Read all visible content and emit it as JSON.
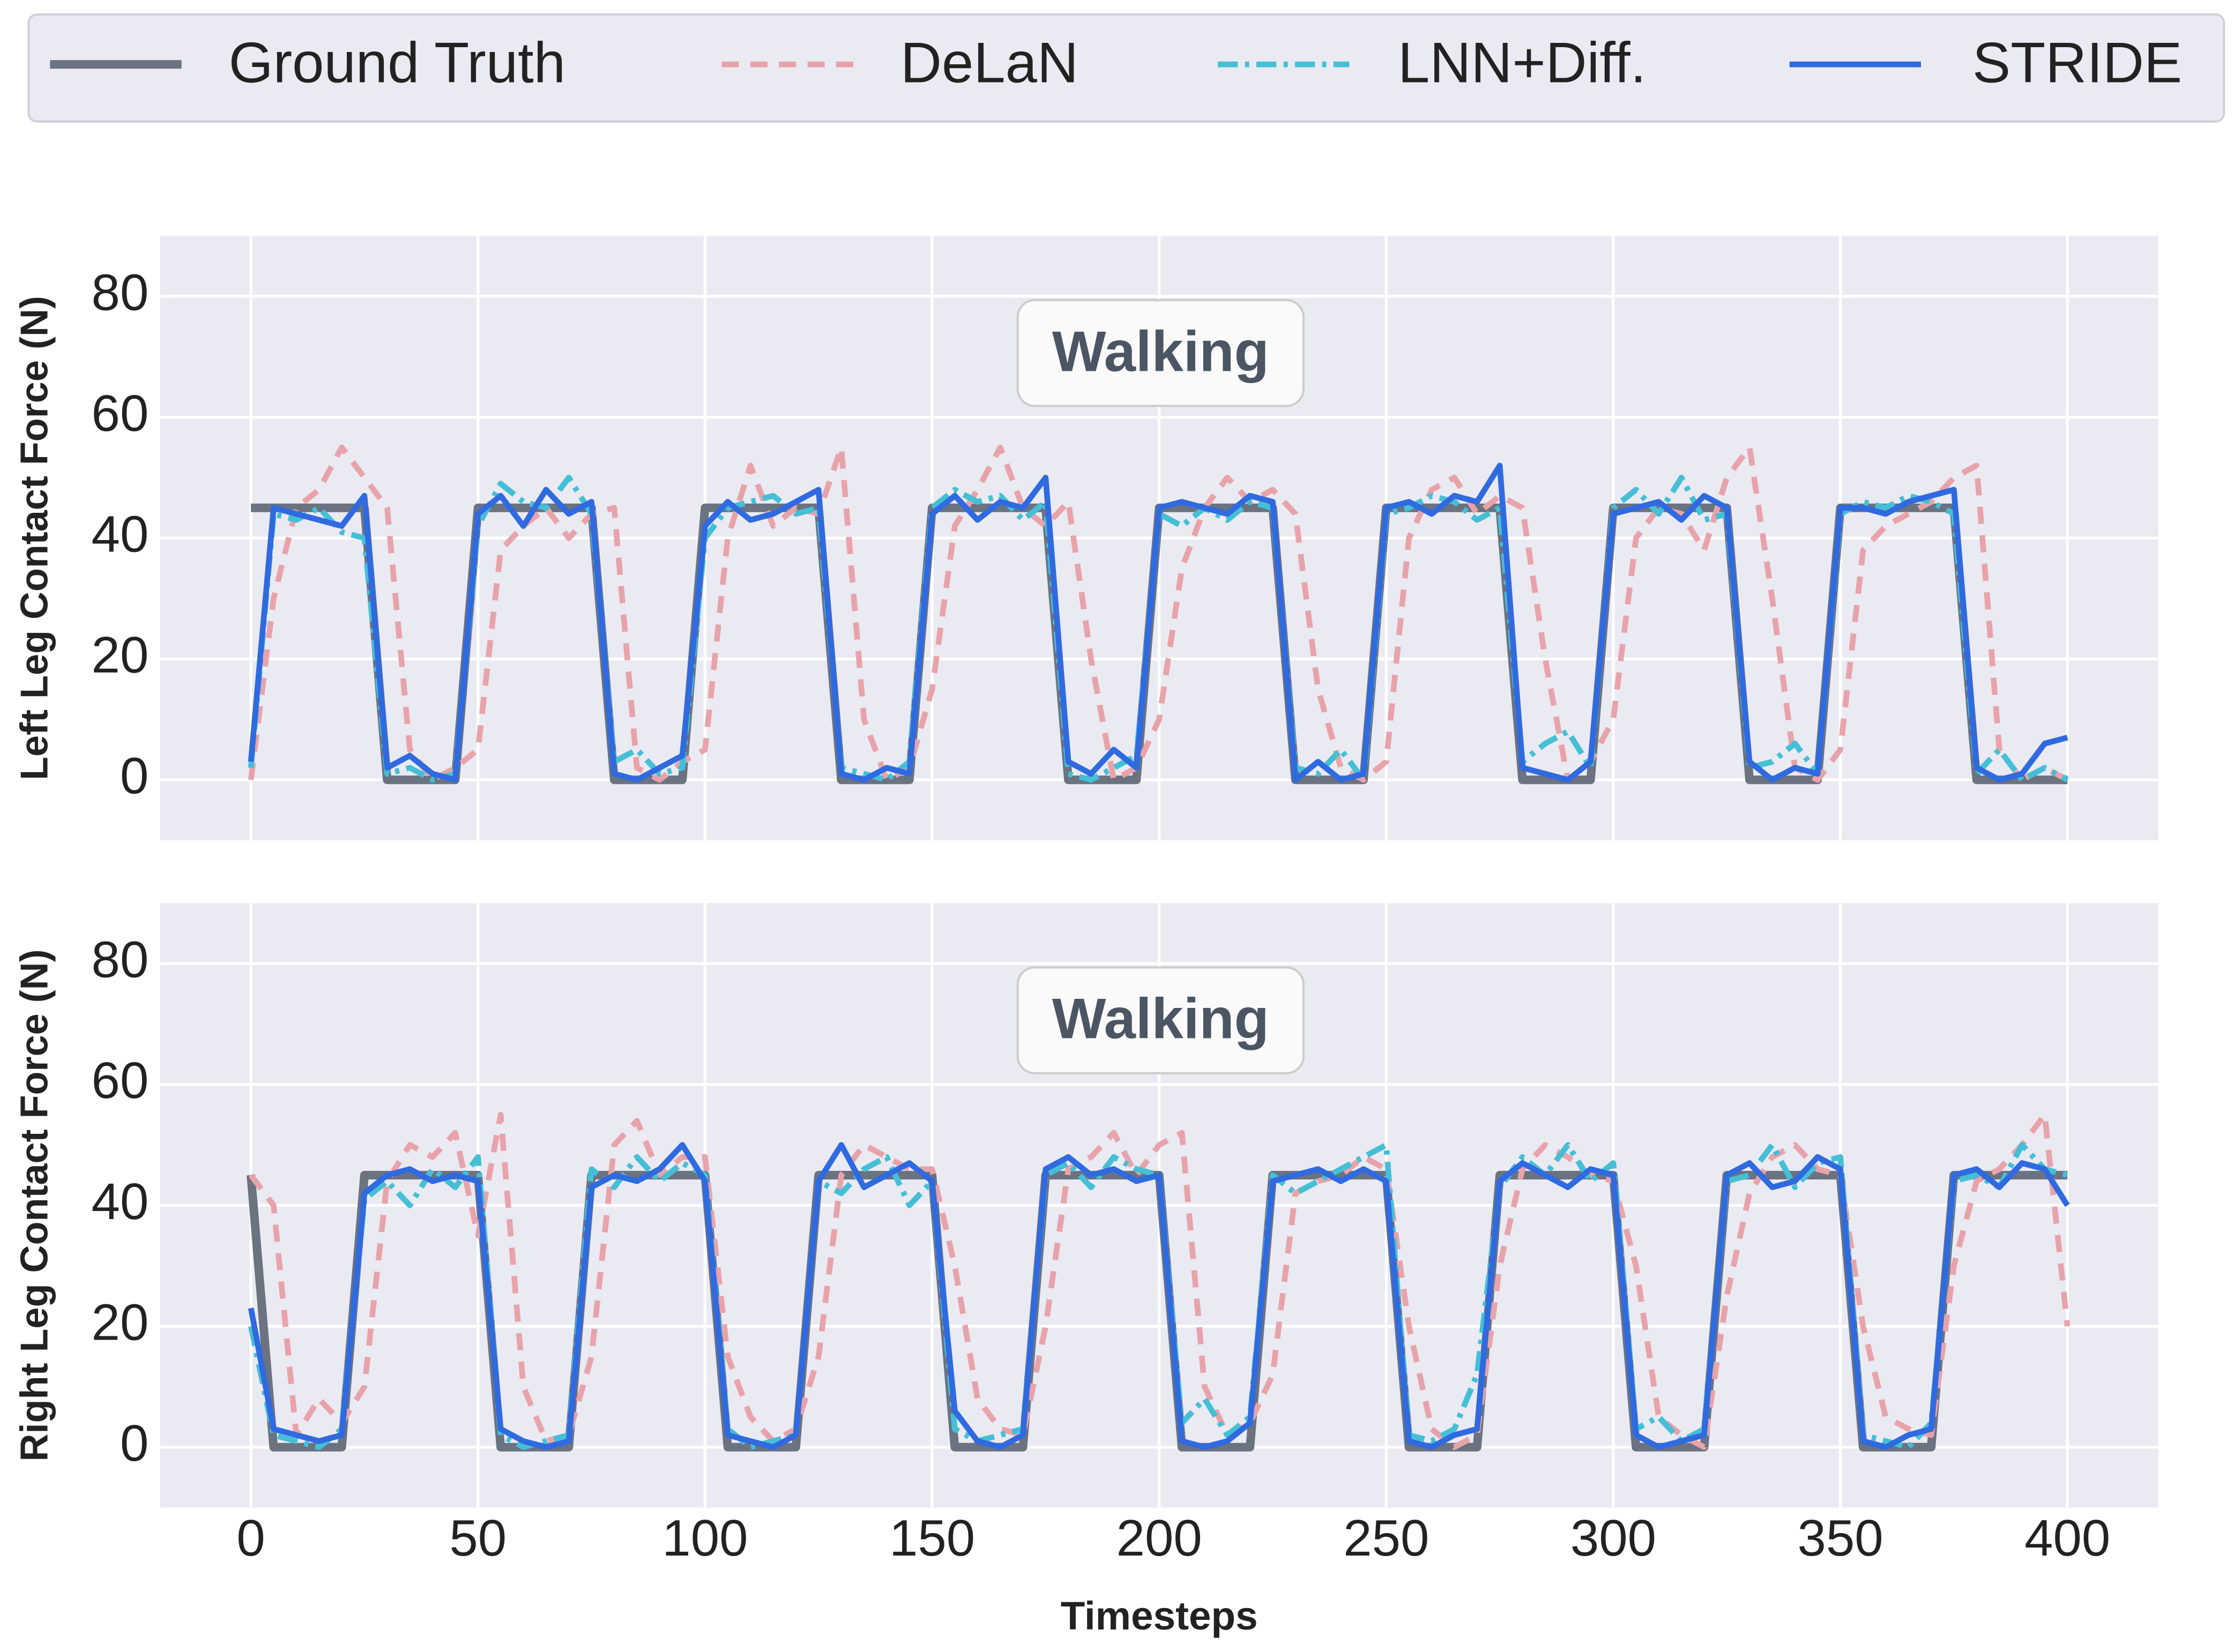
{
  "chart_data": [
    {
      "type": "line",
      "annotation": "Walking",
      "ylabel": "Left Leg Contact Force (N)",
      "xlim": [
        -20,
        420
      ],
      "xticks": [
        0,
        50,
        100,
        150,
        200,
        250,
        300,
        350,
        400
      ],
      "ylim": [
        -10,
        90
      ],
      "yticks": [
        0,
        20,
        40,
        60,
        80
      ],
      "grid": true,
      "legend": "top",
      "x": [
        0,
        5,
        10,
        15,
        20,
        25,
        30,
        35,
        40,
        45,
        50,
        55,
        60,
        65,
        70,
        75,
        80,
        85,
        90,
        95,
        100,
        105,
        110,
        115,
        120,
        125,
        130,
        135,
        140,
        145,
        150,
        155,
        160,
        165,
        170,
        175,
        180,
        185,
        190,
        195,
        200,
        205,
        210,
        215,
        220,
        225,
        230,
        235,
        240,
        245,
        250,
        255,
        260,
        265,
        270,
        275,
        280,
        285,
        290,
        295,
        300,
        305,
        310,
        315,
        320,
        325,
        330,
        335,
        340,
        345,
        350,
        355,
        360,
        365,
        370,
        375,
        380,
        385,
        390,
        395,
        400
      ],
      "series": [
        {
          "name": "Ground Truth",
          "color": "#6b7280",
          "linestyle": "solid-thick",
          "values": [
            45,
            45,
            45,
            45,
            45,
            45,
            0,
            0,
            0,
            0,
            45,
            45,
            45,
            45,
            45,
            45,
            0,
            0,
            0,
            0,
            45,
            45,
            45,
            45,
            45,
            45,
            0,
            0,
            0,
            0,
            45,
            45,
            45,
            45,
            45,
            45,
            0,
            0,
            0,
            0,
            45,
            45,
            45,
            45,
            45,
            45,
            0,
            0,
            0,
            0,
            45,
            45,
            45,
            45,
            45,
            45,
            0,
            0,
            0,
            0,
            45,
            45,
            45,
            45,
            45,
            45,
            0,
            0,
            0,
            0,
            45,
            45,
            45,
            45,
            45,
            45,
            0,
            0,
            0,
            0,
            0
          ]
        },
        {
          "name": "DeLaN",
          "color": "#e8a3aa",
          "linestyle": "dashed",
          "values": [
            0,
            30,
            45,
            48,
            55,
            50,
            45,
            5,
            0,
            2,
            5,
            38,
            42,
            45,
            40,
            44,
            45,
            2,
            0,
            3,
            5,
            40,
            52,
            42,
            45,
            44,
            55,
            10,
            0,
            2,
            15,
            42,
            48,
            55,
            45,
            42,
            46,
            20,
            0,
            2,
            10,
            35,
            45,
            50,
            46,
            48,
            44,
            15,
            2,
            0,
            3,
            40,
            48,
            50,
            44,
            47,
            45,
            20,
            0,
            3,
            10,
            40,
            45,
            44,
            38,
            50,
            55,
            30,
            2,
            0,
            5,
            38,
            42,
            44,
            46,
            50,
            52,
            5,
            0,
            2,
            0
          ]
        },
        {
          "name": "LNN+Diff.",
          "color": "#45bfd6",
          "linestyle": "dashdot",
          "values": [
            2,
            44,
            43,
            45,
            41,
            40,
            1,
            2,
            0,
            1,
            42,
            49,
            46,
            45,
            50,
            44,
            3,
            5,
            1,
            2,
            40,
            45,
            46,
            47,
            44,
            45,
            2,
            1,
            0,
            3,
            45,
            48,
            46,
            47,
            43,
            46,
            1,
            0,
            2,
            4,
            44,
            42,
            45,
            43,
            46,
            45,
            2,
            1,
            5,
            0,
            44,
            45,
            47,
            46,
            43,
            45,
            3,
            6,
            8,
            2,
            45,
            48,
            44,
            50,
            43,
            44,
            2,
            3,
            6,
            1,
            44,
            46,
            45,
            47,
            46,
            44,
            1,
            5,
            0,
            2,
            0
          ]
        },
        {
          "name": "STRIDE",
          "color": "#2f6ae0",
          "linestyle": "solid",
          "values": [
            3,
            45,
            44,
            43,
            42,
            47,
            2,
            4,
            1,
            0,
            44,
            47,
            42,
            48,
            44,
            46,
            1,
            0,
            2,
            4,
            42,
            46,
            43,
            44,
            46,
            48,
            1,
            0,
            2,
            1,
            44,
            47,
            43,
            46,
            45,
            50,
            3,
            1,
            5,
            2,
            45,
            46,
            45,
            44,
            47,
            46,
            0,
            3,
            0,
            1,
            45,
            46,
            44,
            47,
            46,
            52,
            2,
            1,
            0,
            3,
            44,
            45,
            46,
            43,
            47,
            45,
            3,
            0,
            2,
            1,
            45,
            45,
            44,
            46,
            47,
            48,
            2,
            0,
            1,
            6,
            7
          ]
        }
      ]
    },
    {
      "type": "line",
      "annotation": "Walking",
      "ylabel": "Right Leg Contact Force (N)",
      "xlabel": "Timesteps",
      "xlim": [
        -20,
        420
      ],
      "xticks": [
        0,
        50,
        100,
        150,
        200,
        250,
        300,
        350,
        400
      ],
      "ylim": [
        -10,
        90
      ],
      "yticks": [
        0,
        20,
        40,
        60,
        80
      ],
      "grid": true,
      "x": [
        0,
        5,
        10,
        15,
        20,
        25,
        30,
        35,
        40,
        45,
        50,
        55,
        60,
        65,
        70,
        75,
        80,
        85,
        90,
        95,
        100,
        105,
        110,
        115,
        120,
        125,
        130,
        135,
        140,
        145,
        150,
        155,
        160,
        165,
        170,
        175,
        180,
        185,
        190,
        195,
        200,
        205,
        210,
        215,
        220,
        225,
        230,
        235,
        240,
        245,
        250,
        255,
        260,
        265,
        270,
        275,
        280,
        285,
        290,
        295,
        300,
        305,
        310,
        315,
        320,
        325,
        330,
        335,
        340,
        345,
        350,
        355,
        360,
        365,
        370,
        375,
        380,
        385,
        390,
        395,
        400
      ],
      "series": [
        {
          "color": "#6b7280",
          "linestyle": "solid-thick",
          "values": [
            45,
            0,
            0,
            0,
            0,
            45,
            45,
            45,
            45,
            45,
            45,
            0,
            0,
            0,
            0,
            45,
            45,
            45,
            45,
            45,
            45,
            0,
            0,
            0,
            0,
            45,
            45,
            45,
            45,
            45,
            45,
            0,
            0,
            0,
            0,
            45,
            45,
            45,
            45,
            45,
            45,
            0,
            0,
            0,
            0,
            45,
            45,
            45,
            45,
            45,
            45,
            0,
            0,
            0,
            0,
            45,
            45,
            45,
            45,
            45,
            45,
            0,
            0,
            0,
            0,
            45,
            45,
            45,
            45,
            45,
            45,
            0,
            0,
            0,
            0,
            45,
            45,
            45,
            45,
            45,
            45
          ]
        },
        {
          "color": "#e8a3aa",
          "linestyle": "dashed",
          "values": [
            45,
            40,
            2,
            8,
            4,
            10,
            44,
            50,
            48,
            52,
            35,
            55,
            10,
            1,
            2,
            15,
            50,
            54,
            45,
            48,
            48,
            15,
            5,
            1,
            3,
            15,
            45,
            50,
            48,
            46,
            46,
            30,
            8,
            3,
            2,
            20,
            46,
            48,
            52,
            45,
            50,
            52,
            10,
            2,
            4,
            12,
            42,
            44,
            45,
            48,
            46,
            20,
            3,
            0,
            2,
            30,
            46,
            50,
            48,
            45,
            44,
            30,
            5,
            2,
            0,
            25,
            42,
            48,
            50,
            46,
            45,
            20,
            5,
            3,
            2,
            30,
            44,
            46,
            50,
            55,
            20
          ]
        },
        {
          "color": "#45bfd6",
          "linestyle": "dashdot",
          "values": [
            20,
            2,
            1,
            0,
            3,
            41,
            44,
            40,
            46,
            43,
            48,
            2,
            0,
            1,
            2,
            46,
            43,
            48,
            44,
            47,
            45,
            3,
            0,
            1,
            2,
            44,
            42,
            46,
            48,
            40,
            44,
            3,
            1,
            2,
            3,
            45,
            47,
            43,
            48,
            46,
            45,
            4,
            8,
            2,
            5,
            45,
            42,
            44,
            46,
            48,
            50,
            2,
            1,
            3,
            12,
            43,
            48,
            45,
            50,
            44,
            47,
            3,
            5,
            1,
            3,
            44,
            45,
            50,
            43,
            47,
            48,
            2,
            1,
            0,
            4,
            44,
            45,
            43,
            50,
            46,
            45
          ]
        },
        {
          "color": "#2f6ae0",
          "linestyle": "solid",
          "values": [
            23,
            3,
            2,
            1,
            2,
            42,
            45,
            46,
            44,
            45,
            44,
            3,
            1,
            0,
            1,
            43,
            45,
            44,
            46,
            50,
            44,
            2,
            1,
            0,
            2,
            44,
            50,
            43,
            45,
            47,
            44,
            6,
            1,
            0,
            2,
            46,
            48,
            45,
            46,
            44,
            45,
            1,
            0,
            1,
            4,
            44,
            45,
            46,
            44,
            46,
            44,
            1,
            0,
            2,
            3,
            44,
            47,
            45,
            43,
            46,
            45,
            2,
            0,
            1,
            2,
            45,
            47,
            43,
            44,
            48,
            46,
            1,
            0,
            2,
            3,
            45,
            46,
            43,
            47,
            46,
            40
          ]
        }
      ]
    }
  ]
}
